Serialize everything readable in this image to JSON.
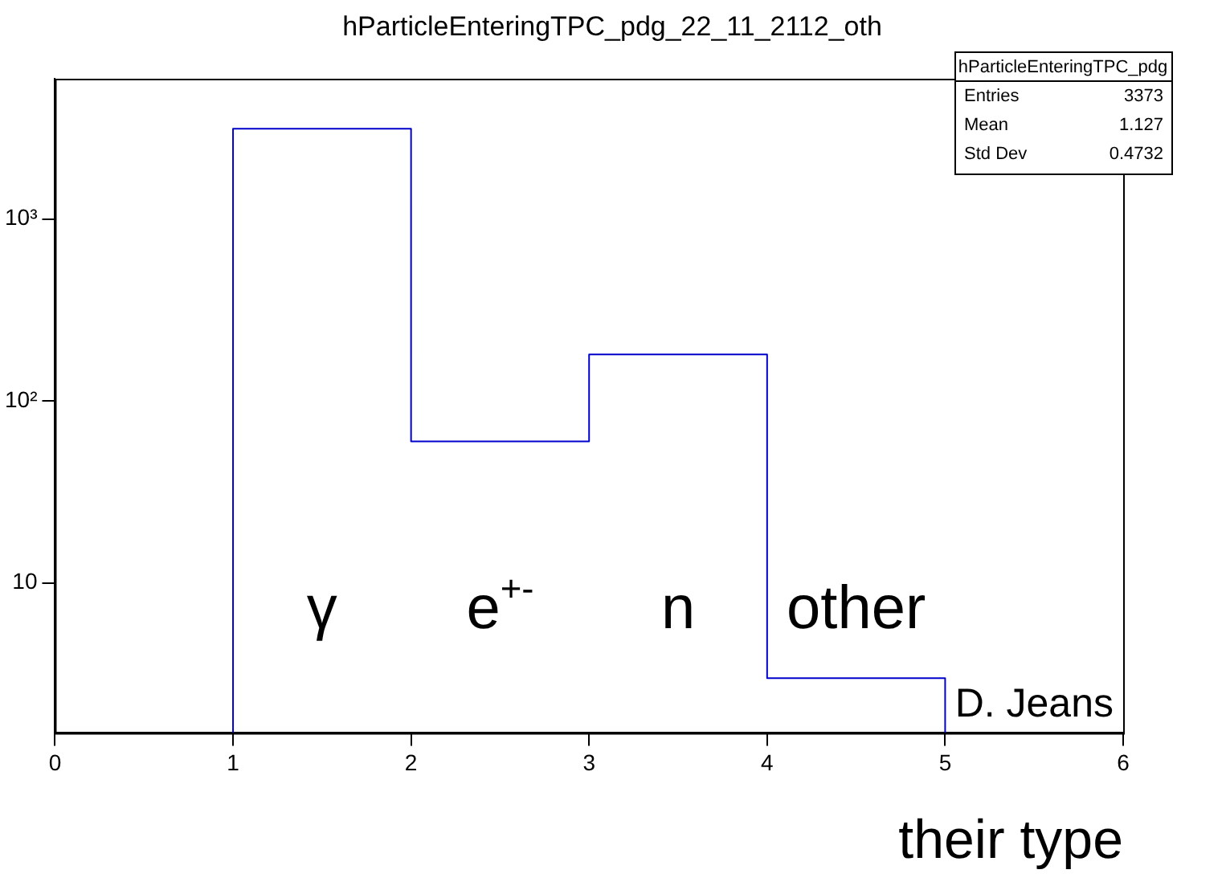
{
  "chart_data": {
    "type": "histogram",
    "title": "hParticleEnteringTPC_pdg_22_11_2112_oth",
    "xlabel": "their type",
    "bins": [
      1,
      2,
      3,
      4,
      5
    ],
    "values": [
      3130,
      60,
      180,
      3
    ],
    "color": "#0000cc",
    "xlim": [
      0,
      6
    ],
    "xticks": [
      0,
      1,
      2,
      3,
      4,
      5,
      6
    ],
    "ylim": [
      1.5,
      5900
    ],
    "yticks": [
      10,
      {
        "value": 100,
        "label": "10²"
      },
      {
        "value": 1000,
        "label": "10³"
      }
    ],
    "log": "y",
    "grid": false,
    "legend": false,
    "annotations": [
      "D. Jeans",
      "hParticleEnteringTPC_pdg",
      "Entries 3373",
      "Mean 1.127",
      "Std Dev 0.4732",
      "γ",
      "e$^{+-}$",
      "n",
      "other"
    ]
  }
}
